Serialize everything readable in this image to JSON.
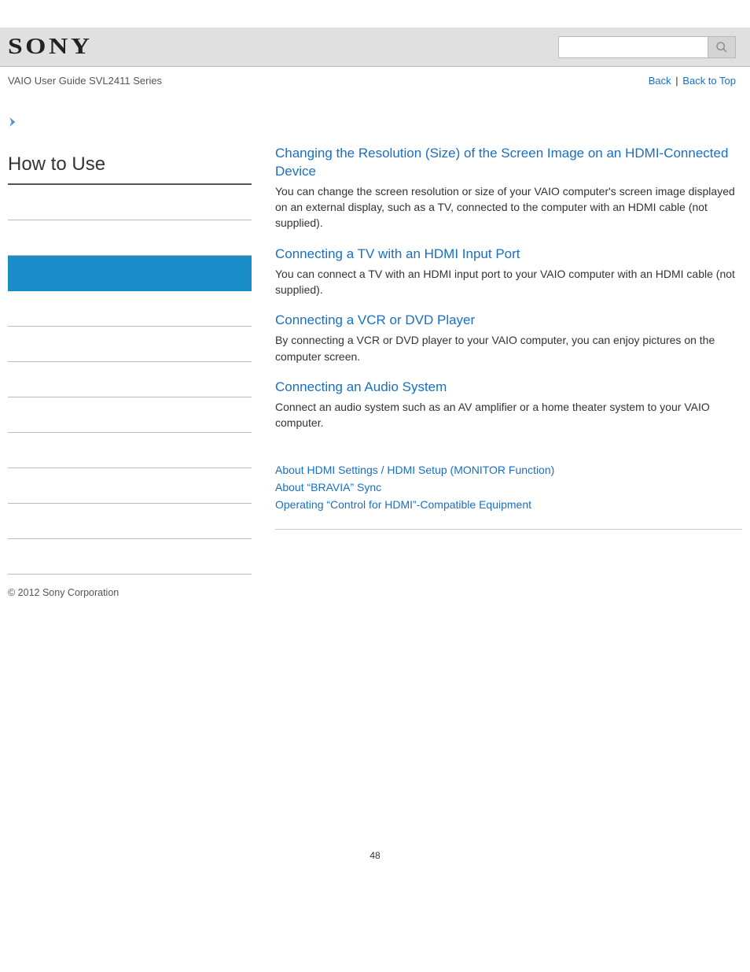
{
  "header": {
    "logo_text": "SONY",
    "search_placeholder": ""
  },
  "subheader": {
    "guide_title": "VAIO User Guide SVL2411 Series",
    "back_label": "Back",
    "separator": "|",
    "back_to_top_label": "Back to Top"
  },
  "sidebar": {
    "title": "How to Use",
    "item_count": 11,
    "active_index": 2
  },
  "main": {
    "topics": [
      {
        "title": "Changing the Resolution (Size) of the Screen Image on an HDMI-Connected Device",
        "desc": "You can change the screen resolution or size of your VAIO computer's screen image displayed on an external display, such as a TV, connected to the computer with an HDMI cable (not supplied)."
      },
      {
        "title": "Connecting a TV with an HDMI Input Port",
        "desc": "You can connect a TV with an HDMI input port to your VAIO computer with an HDMI cable (not supplied)."
      },
      {
        "title": "Connecting a VCR or DVD Player",
        "desc": "By connecting a VCR or DVD player to your VAIO computer, you can enjoy pictures on the computer screen."
      },
      {
        "title": "Connecting an Audio System",
        "desc": "Connect an audio system such as an AV amplifier or a home theater system to your VAIO computer."
      }
    ],
    "related_links": [
      "About HDMI Settings / HDMI Setup (MONITOR Function)",
      "About “BRAVIA” Sync",
      "Operating “Control for HDMI”-Compatible Equipment"
    ]
  },
  "footer": {
    "copyright": "© 2012 Sony Corporation"
  },
  "page_number": "48",
  "colors": {
    "link": "#1a6fc4",
    "header_bg": "#e0e0e0",
    "active_bg": "#1a8cc8",
    "text": "#333333",
    "border": "#bbbbbb"
  }
}
